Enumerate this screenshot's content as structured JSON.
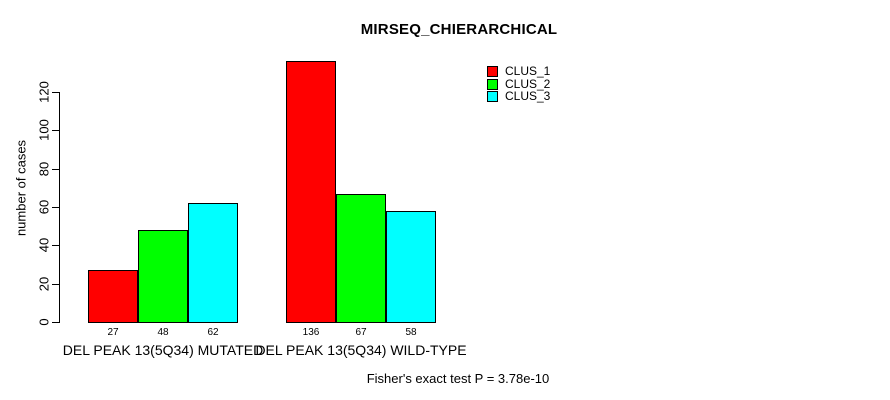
{
  "chart_data": {
    "type": "bar",
    "title": "MIRSEQ_CHIERARCHICAL",
    "ylabel": "number of cases",
    "xlabel": "",
    "ylim": [
      0,
      140
    ],
    "yticks": [
      0,
      20,
      40,
      60,
      80,
      100,
      120
    ],
    "grid": false,
    "legend_position": "top-right",
    "categories": [
      "DEL PEAK 13(5Q34) MUTATED",
      "DEL PEAK 13(5Q34) WILD-TYPE"
    ],
    "series": [
      {
        "name": "CLUS_1",
        "color": "#ff0000",
        "values": [
          27,
          136
        ]
      },
      {
        "name": "CLUS_2",
        "color": "#00ff00",
        "values": [
          48,
          67
        ]
      },
      {
        "name": "CLUS_3",
        "color": "#00ffff",
        "values": [
          62,
          58
        ]
      }
    ],
    "bar_value_labels": [
      [
        27,
        48,
        62
      ],
      [
        136,
        67,
        58
      ]
    ],
    "annotation": "Fisher's exact test P = 3.78e-10"
  }
}
